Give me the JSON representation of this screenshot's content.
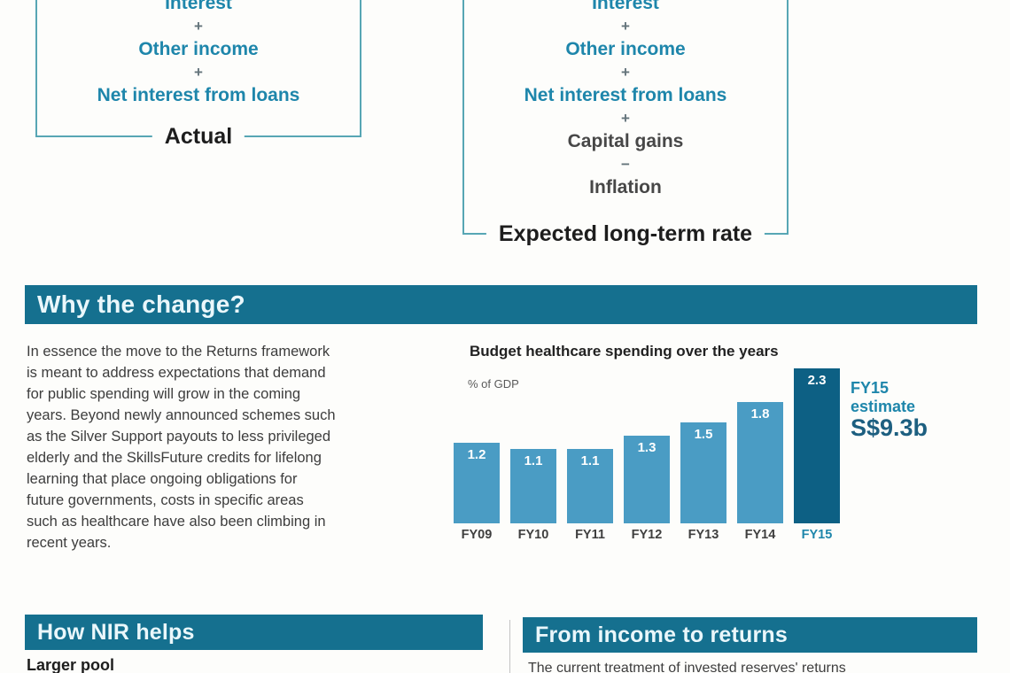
{
  "formula": {
    "actual": {
      "items": [
        {
          "text": "Interest",
          "style": "income",
          "name": "formula-term-interest"
        },
        {
          "text": "+",
          "style": "op",
          "name": "plus-operator"
        },
        {
          "text": "Other income",
          "style": "income",
          "name": "formula-term-other-income"
        },
        {
          "text": "+",
          "style": "op",
          "name": "plus-operator"
        },
        {
          "text": "Net interest from loans",
          "style": "income",
          "name": "formula-term-net-interest"
        }
      ],
      "label": "Actual"
    },
    "expected": {
      "items": [
        {
          "text": "Interest",
          "style": "income",
          "name": "formula-term-interest"
        },
        {
          "text": "+",
          "style": "op",
          "name": "plus-operator"
        },
        {
          "text": "Other income",
          "style": "income",
          "name": "formula-term-other-income"
        },
        {
          "text": "+",
          "style": "op",
          "name": "plus-operator"
        },
        {
          "text": "Net interest from loans",
          "style": "income",
          "name": "formula-term-net-interest"
        },
        {
          "text": "+",
          "style": "op",
          "name": "plus-operator"
        },
        {
          "text": "Capital gains",
          "style": "deduct",
          "name": "formula-term-capital-gains"
        },
        {
          "text": "−",
          "style": "op",
          "name": "minus-operator"
        },
        {
          "text": "Inflation",
          "style": "deduct",
          "name": "formula-term-inflation"
        }
      ],
      "label": "Expected long-term rate"
    }
  },
  "why_section": {
    "title": "Why the change?",
    "paragraph": "In essence the move to the Returns framework\nis meant to address expectations that demand\nfor public spending will grow in the coming\nyears. Beyond newly announced schemes such\nas the Silver Support payouts to less privileged\nelderly and the SkillsFuture credits for lifelong\nlearning that place ongoing obligations for\nfuture governments, costs in specific areas\nsuch as healthcare have also been climbing in\nrecent years."
  },
  "chart_data": {
    "type": "bar",
    "title": "Budget healthcare spending over the years",
    "ylabel": "% of GDP",
    "categories": [
      "FY09",
      "FY10",
      "FY11",
      "FY12",
      "FY13",
      "FY14",
      "FY15"
    ],
    "values": [
      1.2,
      1.1,
      1.1,
      1.3,
      1.5,
      1.8,
      2.3
    ],
    "data_labels": [
      "1.2",
      "1.1",
      "1.1",
      "1.3",
      "1.5",
      "1.8",
      "2.3"
    ],
    "highlight_index": 6,
    "ylim": [
      0,
      2.5
    ],
    "grid": false,
    "legend": false,
    "bar_color": "#4a9cc4",
    "highlight_color": "#0d6084",
    "highlight_label_color": "#1e86ab",
    "annotation": {
      "line1": "FY15",
      "line2": "estimate",
      "amount": "S$9.3b"
    }
  },
  "bottom": {
    "left_title": "How NIR helps",
    "left_subheading": "Larger pool",
    "right_title": "From income to returns",
    "right_text": "The current treatment of invested reserves' returns"
  },
  "colors": {
    "banner_bg": "#15708f",
    "box_border": "#57a6b4",
    "income_text": "#1e86ab",
    "deduct_text": "#474747"
  }
}
